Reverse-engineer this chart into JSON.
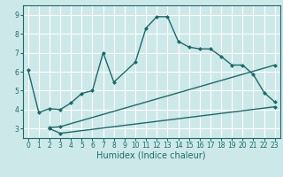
{
  "title": "",
  "xlabel": "Humidex (Indice chaleur)",
  "bg_color": "#cde8e8",
  "grid_color": "#ffffff",
  "line_color": "#1a6b6b",
  "xlim": [
    -0.5,
    23.5
  ],
  "ylim": [
    2.5,
    9.5
  ],
  "xticks": [
    0,
    1,
    2,
    3,
    4,
    5,
    6,
    7,
    8,
    9,
    10,
    11,
    12,
    13,
    14,
    15,
    16,
    17,
    18,
    19,
    20,
    21,
    22,
    23
  ],
  "yticks": [
    3,
    4,
    5,
    6,
    7,
    8,
    9
  ],
  "line1_x": [
    0,
    1,
    2,
    3,
    4,
    5,
    6,
    7,
    8,
    10,
    11,
    12,
    13,
    14,
    15,
    16,
    17,
    18,
    19,
    20,
    21,
    22,
    23
  ],
  "line1_y": [
    6.1,
    3.85,
    4.05,
    4.0,
    4.35,
    4.85,
    5.0,
    7.0,
    5.45,
    6.5,
    8.3,
    8.9,
    8.9,
    7.6,
    7.3,
    7.2,
    7.2,
    6.8,
    6.35,
    6.35,
    5.85,
    4.9,
    4.4
  ],
  "line2_x": [
    2,
    3,
    23
  ],
  "line2_y": [
    3.0,
    2.75,
    4.15
  ],
  "line3_x": [
    2,
    3,
    23
  ],
  "line3_y": [
    3.05,
    3.1,
    6.35
  ],
  "xlabel_fontsize": 7,
  "tick_fontsize": 5.5
}
